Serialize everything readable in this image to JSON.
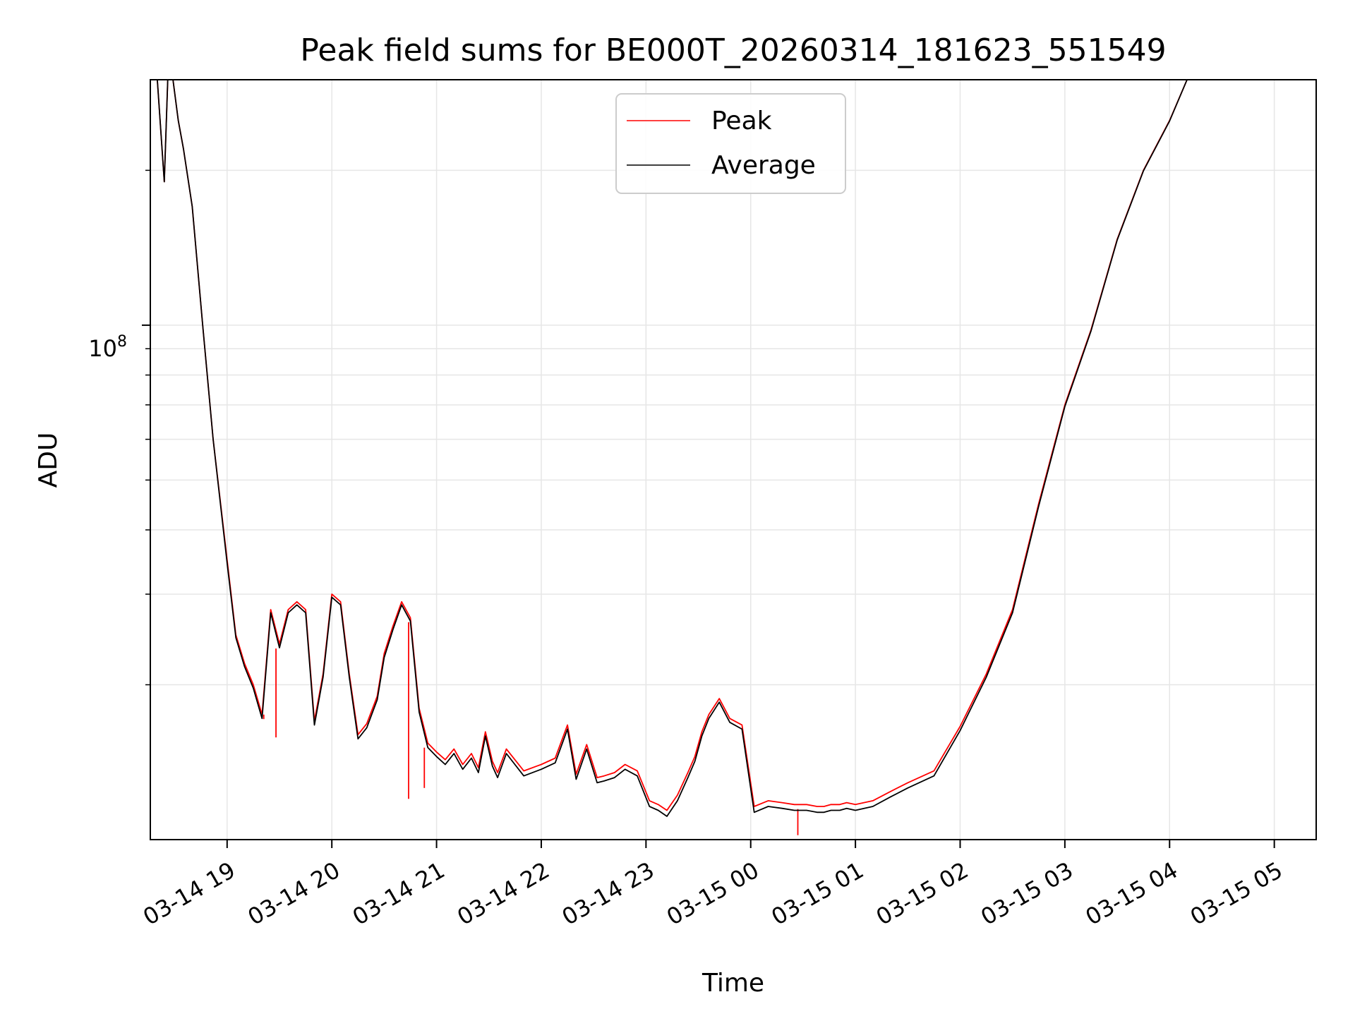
{
  "chart_data": {
    "type": "line",
    "title": "Peak field sums for BE000T_20260314_181623_551549",
    "xlabel": "Time",
    "ylabel": "ADU",
    "yscale": "log",
    "ylim": [
      10000000,
      300000000
    ],
    "xlim": [
      "2026-03-14 18:16",
      "2026-03-15 05:24"
    ],
    "grid": true,
    "legend": {
      "placement": "top-center"
    },
    "x_ticks": [
      "2026-03-14 19:00",
      "2026-03-14 20:00",
      "2026-03-14 21:00",
      "2026-03-14 22:00",
      "2026-03-14 23:00",
      "2026-03-15 00:00",
      "2026-03-15 01:00",
      "2026-03-15 02:00",
      "2026-03-15 03:00",
      "2026-03-15 04:00",
      "2026-03-15 05:00"
    ],
    "x_tick_labels": [
      "03-14 19",
      "03-14 20",
      "03-14 21",
      "03-14 22",
      "03-14 23",
      "03-15 00",
      "03-15 01",
      "03-15 02",
      "03-15 03",
      "03-15 04",
      "03-15 05"
    ],
    "y_tick_label": {
      "base": "10",
      "exponent": "8"
    },
    "series": [
      {
        "name": "Peak",
        "color": "#ff0000",
        "x": [
          "2026-03-14 18:16",
          "2026-03-14 18:20",
          "2026-03-14 18:24",
          "2026-03-14 18:26",
          "2026-03-14 18:29",
          "2026-03-14 18:32",
          "2026-03-14 18:35",
          "2026-03-14 18:40",
          "2026-03-14 18:46",
          "2026-03-14 18:52",
          "2026-03-14 19:00",
          "2026-03-14 19:05",
          "2026-03-14 19:10",
          "2026-03-14 19:15",
          "2026-03-14 19:20",
          "2026-03-14 19:25",
          "2026-03-14 19:30",
          "2026-03-14 19:35",
          "2026-03-14 19:40",
          "2026-03-14 19:45",
          "2026-03-14 19:50",
          "2026-03-14 19:55",
          "2026-03-14 20:00",
          "2026-03-14 20:05",
          "2026-03-14 20:10",
          "2026-03-14 20:15",
          "2026-03-14 20:20",
          "2026-03-14 20:26",
          "2026-03-14 20:30",
          "2026-03-14 20:35",
          "2026-03-14 20:40",
          "2026-03-14 20:45",
          "2026-03-14 20:50",
          "2026-03-14 20:55",
          "2026-03-14 21:00",
          "2026-03-14 21:05",
          "2026-03-14 21:10",
          "2026-03-14 21:15",
          "2026-03-14 21:20",
          "2026-03-14 21:24",
          "2026-03-14 21:28",
          "2026-03-14 21:32",
          "2026-03-14 21:35",
          "2026-03-14 21:40",
          "2026-03-14 21:50",
          "2026-03-14 22:00",
          "2026-03-14 22:08",
          "2026-03-14 22:15",
          "2026-03-14 22:20",
          "2026-03-14 22:26",
          "2026-03-14 22:32",
          "2026-03-14 22:36",
          "2026-03-14 22:42",
          "2026-03-14 22:48",
          "2026-03-14 22:55",
          "2026-03-14 23:02",
          "2026-03-14 23:07",
          "2026-03-14 23:12",
          "2026-03-14 23:18",
          "2026-03-14 23:24",
          "2026-03-14 23:28",
          "2026-03-14 23:32",
          "2026-03-14 23:36",
          "2026-03-14 23:42",
          "2026-03-14 23:48",
          "2026-03-14 23:55",
          "2026-03-15 00:02",
          "2026-03-15 00:10",
          "2026-03-15 00:18",
          "2026-03-15 00:25",
          "2026-03-15 00:32",
          "2026-03-15 00:38",
          "2026-03-15 00:42",
          "2026-03-15 00:46",
          "2026-03-15 00:51",
          "2026-03-15 00:55",
          "2026-03-15 01:00",
          "2026-03-15 01:10",
          "2026-03-15 01:20",
          "2026-03-15 01:30",
          "2026-03-15 01:45",
          "2026-03-15 02:00",
          "2026-03-15 02:15",
          "2026-03-15 02:30",
          "2026-03-15 02:45",
          "2026-03-15 03:00",
          "2026-03-15 03:15",
          "2026-03-15 03:30",
          "2026-03-15 03:45",
          "2026-03-15 04:00",
          "2026-03-15 04:10",
          "2026-03-15 04:18",
          "2026-03-15 04:22",
          "2026-03-15 04:28",
          "2026-03-15 04:33",
          "2026-03-15 04:38",
          "2026-03-15 04:44",
          "2026-03-15 04:50",
          "2026-03-15 04:55",
          "2026-03-15 05:00",
          "2026-03-15 05:06"
        ],
        "y": [
          300000000,
          300000000,
          190000000,
          300000000,
          300000000,
          250000000,
          220000000,
          170000000,
          100000000,
          60000000,
          35000000,
          25000000,
          22000000,
          20000000,
          17500000,
          28000000,
          24000000,
          28000000,
          29000000,
          28000000,
          17000000,
          21000000,
          30000000,
          29000000,
          21000000,
          16000000,
          16800000,
          19000000,
          23000000,
          26000000,
          29000000,
          27000000,
          18000000,
          15400000,
          14800000,
          14300000,
          15000000,
          14000000,
          14700000,
          13800000,
          16200000,
          14200000,
          13500000,
          15000000,
          13600000,
          14000000,
          14400000,
          16700000,
          13400000,
          15300000,
          13200000,
          13300000,
          13500000,
          14000000,
          13600000,
          11900000,
          11700000,
          11400000,
          12200000,
          13500000,
          14500000,
          16200000,
          17500000,
          18800000,
          17200000,
          16700000,
          11600000,
          11900000,
          11800000,
          11700000,
          11700000,
          11600000,
          11600000,
          11700000,
          11700000,
          11800000,
          11700000,
          11900000,
          12400000,
          12900000,
          13600000,
          16600000,
          21000000,
          28000000,
          45000000,
          70000000,
          98000000,
          147000000,
          200000000,
          250000000,
          300000000,
          300000000,
          300000000,
          300000000,
          300000000,
          300000000,
          300000000,
          300000000,
          300000000,
          300000000,
          300000000
        ],
        "spikes": [
          {
            "x": "2026-03-14 19:21",
            "y": 17500000
          },
          {
            "x": "2026-03-14 19:28",
            "y": 15800000
          },
          {
            "x": "2026-03-14 20:44",
            "y": 12000000
          },
          {
            "x": "2026-03-14 20:53",
            "y": 12600000
          },
          {
            "x": "2026-03-15 00:27",
            "y": 10200000
          }
        ]
      },
      {
        "name": "Average",
        "color": "#000000",
        "x": [
          "2026-03-14 18:16",
          "2026-03-14 18:20",
          "2026-03-14 18:24",
          "2026-03-14 18:26",
          "2026-03-14 18:29",
          "2026-03-14 18:32",
          "2026-03-14 18:35",
          "2026-03-14 18:40",
          "2026-03-14 18:46",
          "2026-03-14 18:52",
          "2026-03-14 19:00",
          "2026-03-14 19:05",
          "2026-03-14 19:10",
          "2026-03-14 19:15",
          "2026-03-14 19:20",
          "2026-03-14 19:25",
          "2026-03-14 19:30",
          "2026-03-14 19:35",
          "2026-03-14 19:40",
          "2026-03-14 19:45",
          "2026-03-14 19:50",
          "2026-03-14 19:55",
          "2026-03-14 20:00",
          "2026-03-14 20:05",
          "2026-03-14 20:10",
          "2026-03-14 20:15",
          "2026-03-14 20:20",
          "2026-03-14 20:26",
          "2026-03-14 20:30",
          "2026-03-14 20:35",
          "2026-03-14 20:40",
          "2026-03-14 20:45",
          "2026-03-14 20:50",
          "2026-03-14 20:55",
          "2026-03-14 21:00",
          "2026-03-14 21:05",
          "2026-03-14 21:10",
          "2026-03-14 21:15",
          "2026-03-14 21:20",
          "2026-03-14 21:24",
          "2026-03-14 21:28",
          "2026-03-14 21:32",
          "2026-03-14 21:35",
          "2026-03-14 21:40",
          "2026-03-14 21:50",
          "2026-03-14 22:00",
          "2026-03-14 22:08",
          "2026-03-14 22:15",
          "2026-03-14 22:20",
          "2026-03-14 22:26",
          "2026-03-14 22:32",
          "2026-03-14 22:36",
          "2026-03-14 22:42",
          "2026-03-14 22:48",
          "2026-03-14 22:55",
          "2026-03-14 23:02",
          "2026-03-14 23:07",
          "2026-03-14 23:12",
          "2026-03-14 23:18",
          "2026-03-14 23:24",
          "2026-03-14 23:28",
          "2026-03-14 23:32",
          "2026-03-14 23:36",
          "2026-03-14 23:42",
          "2026-03-14 23:48",
          "2026-03-14 23:55",
          "2026-03-15 00:02",
          "2026-03-15 00:10",
          "2026-03-15 00:18",
          "2026-03-15 00:25",
          "2026-03-15 00:32",
          "2026-03-15 00:38",
          "2026-03-15 00:42",
          "2026-03-15 00:46",
          "2026-03-15 00:51",
          "2026-03-15 00:55",
          "2026-03-15 01:00",
          "2026-03-15 01:10",
          "2026-03-15 01:20",
          "2026-03-15 01:30",
          "2026-03-15 01:45",
          "2026-03-15 02:00",
          "2026-03-15 02:15",
          "2026-03-15 02:30",
          "2026-03-15 02:45",
          "2026-03-15 03:00",
          "2026-03-15 03:15",
          "2026-03-15 03:30",
          "2026-03-15 03:45",
          "2026-03-15 04:00",
          "2026-03-15 04:10",
          "2026-03-15 04:18",
          "2026-03-15 04:22",
          "2026-03-15 04:28",
          "2026-03-15 04:33",
          "2026-03-15 04:38",
          "2026-03-15 04:44",
          "2026-03-15 04:50",
          "2026-03-15 04:55",
          "2026-03-15 05:00",
          "2026-03-15 05:06"
        ],
        "y": [
          300000000,
          300000000,
          190000000,
          300000000,
          300000000,
          250000000,
          220000000,
          170000000,
          100000000,
          60000000,
          34500000,
          24700000,
          21700000,
          19700000,
          17200000,
          27600000,
          23600000,
          27600000,
          28600000,
          27600000,
          16700000,
          20700000,
          29600000,
          28600000,
          20700000,
          15700000,
          16500000,
          18700000,
          22600000,
          25600000,
          28600000,
          26600000,
          17700000,
          15100000,
          14500000,
          14000000,
          14700000,
          13700000,
          14400000,
          13500000,
          15900000,
          13900000,
          13200000,
          14700000,
          13300000,
          13700000,
          14100000,
          16400000,
          13100000,
          15000000,
          12900000,
          13000000,
          13200000,
          13700000,
          13300000,
          11600000,
          11400000,
          11100000,
          11900000,
          13200000,
          14200000,
          15900000,
          17200000,
          18500000,
          16900000,
          16400000,
          11300000,
          11600000,
          11500000,
          11400000,
          11400000,
          11300000,
          11300000,
          11400000,
          11400000,
          11500000,
          11400000,
          11600000,
          12100000,
          12600000,
          13300000,
          16300000,
          20700000,
          27600000,
          44500000,
          69500000,
          97500000,
          146500000,
          199500000,
          249500000,
          300000000,
          300000000,
          300000000,
          300000000,
          300000000,
          300000000,
          300000000,
          300000000,
          300000000,
          300000000,
          300000000
        ]
      }
    ]
  }
}
